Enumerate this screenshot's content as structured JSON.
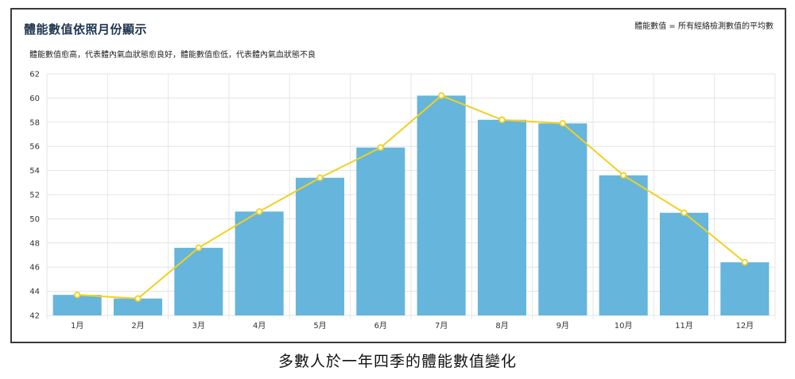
{
  "chart_data": {
    "type": "bar",
    "title": "體能數值依照月份顯示",
    "subtitle": "體能數值愈高，代表體內氣血狀態愈良好，體能數值愈低，代表體內氣血狀態不良",
    "legend_note": "體能數值 = 所有經絡檢測數值的平均數",
    "categories": [
      "1月",
      "2月",
      "3月",
      "4月",
      "5月",
      "6月",
      "7月",
      "8月",
      "9月",
      "10月",
      "11月",
      "12月"
    ],
    "series": [
      {
        "type": "bar",
        "color": "#66b5dc",
        "values": [
          43.7,
          43.4,
          47.6,
          50.6,
          53.4,
          55.9,
          60.2,
          58.2,
          57.9,
          53.6,
          50.5,
          46.4
        ]
      },
      {
        "type": "line",
        "color": "#f2d020",
        "values": [
          43.7,
          43.4,
          47.6,
          50.6,
          53.4,
          55.9,
          60.2,
          58.2,
          57.9,
          53.6,
          50.5,
          46.4
        ]
      }
    ],
    "ylim": [
      42,
      62
    ],
    "yticks": [
      42,
      44,
      46,
      48,
      50,
      52,
      54,
      56,
      58,
      60,
      62
    ],
    "grid": true
  },
  "caption": "多數人於一年四季的體能數值變化"
}
